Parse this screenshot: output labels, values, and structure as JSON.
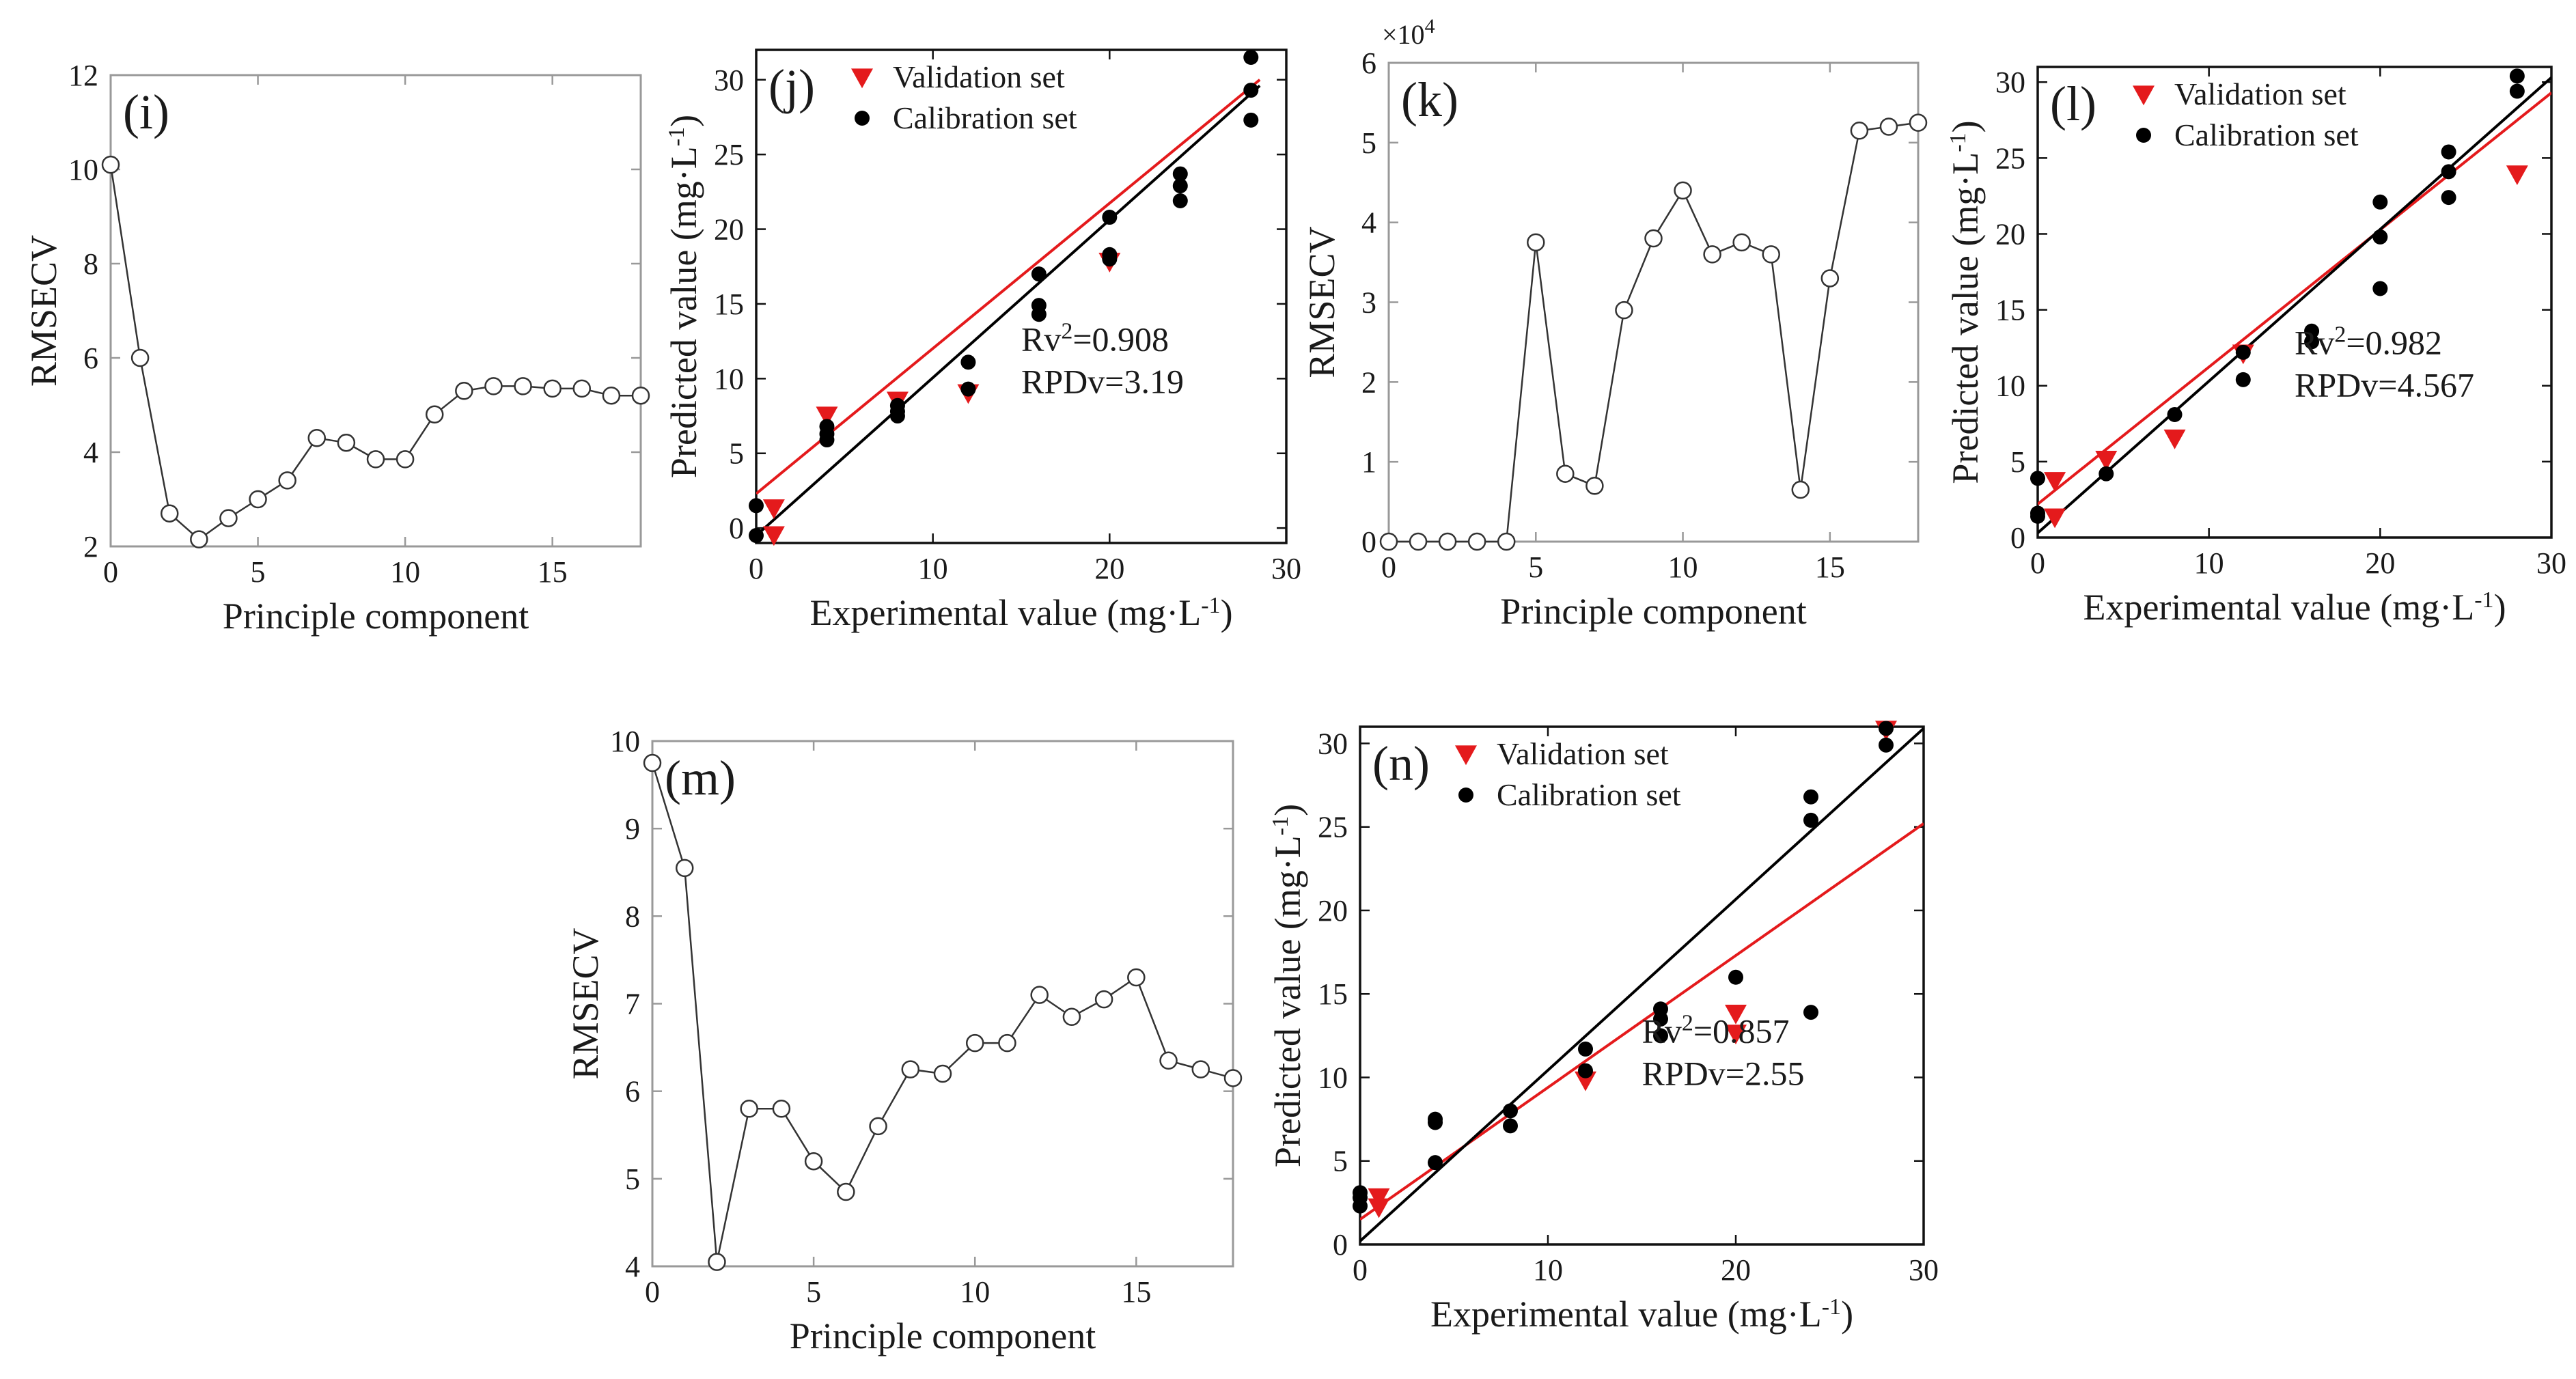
{
  "colors": {
    "validation": "#e41a1c",
    "calibration": "#000000",
    "line_rmsecv": "#333333",
    "frame": "#999999",
    "fit_validation": "#e41a1c",
    "fit_calibration": "#000000"
  },
  "chart_data": [
    {
      "id": "i",
      "type": "line",
      "panel_label": "(i)",
      "xlabel": "Principle component",
      "ylabel": "RMSECV",
      "xlim": [
        0,
        18
      ],
      "ylim": [
        2,
        12
      ],
      "xticks": [
        0,
        5,
        10,
        15
      ],
      "yticks": [
        2,
        4,
        6,
        8,
        10,
        12
      ],
      "xtick_labels": [
        "0",
        "5",
        "10",
        "15"
      ],
      "ytick_labels": [
        "2",
        "4",
        "6",
        "8",
        "10",
        "12"
      ],
      "x": [
        0,
        1,
        2,
        3,
        4,
        5,
        6,
        7,
        8,
        9,
        10,
        11,
        12,
        13,
        14,
        15,
        16,
        17,
        18
      ],
      "y": [
        10.1,
        6.0,
        2.7,
        2.15,
        2.6,
        3.0,
        3.4,
        4.3,
        4.2,
        3.85,
        3.85,
        4.8,
        5.3,
        5.4,
        5.4,
        5.35,
        5.35,
        5.2,
        5.2
      ]
    },
    {
      "id": "j",
      "type": "scatter",
      "panel_label": "(j)",
      "xlabel": "Experimental value (mg·L",
      "xlabel_sup": "-1",
      "xlabel_end": ")",
      "ylabel": "Predicted value (mg·L",
      "ylabel_sup": "-1",
      "ylabel_end": ")",
      "xlim": [
        0,
        30
      ],
      "ylim": [
        -1,
        32
      ],
      "xticks": [
        0,
        10,
        20,
        30
      ],
      "yticks": [
        0,
        5,
        10,
        15,
        20,
        25,
        30
      ],
      "xtick_labels": [
        "0",
        "10",
        "20",
        "30"
      ],
      "ytick_labels": [
        "0",
        "5",
        "10",
        "15",
        "20",
        "25",
        "30"
      ],
      "legend": [
        "Validation set",
        "Calibration set"
      ],
      "annotation": [
        "Rv",
        "2",
        "=0.908",
        "RPDv=3.19"
      ],
      "series": [
        {
          "name": "Validation set",
          "marker": "triangle",
          "x": [
            1,
            1,
            4,
            8,
            12,
            20
          ],
          "y": [
            1.3,
            -0.5,
            7.5,
            8.5,
            9.0,
            17.8
          ]
        },
        {
          "name": "Calibration set",
          "marker": "circle",
          "x": [
            0,
            0,
            4,
            4,
            4,
            8,
            8,
            8,
            12,
            12,
            16,
            16,
            16,
            20,
            20,
            20,
            24,
            24,
            24,
            28,
            28,
            28
          ],
          "y": [
            1.5,
            -0.5,
            6.8,
            6.3,
            5.9,
            8.2,
            7.8,
            7.5,
            11.1,
            9.3,
            17.0,
            14.9,
            14.3,
            20.8,
            18.3,
            18.0,
            23.7,
            22.9,
            21.9,
            31.5,
            29.3,
            27.3
          ]
        }
      ],
      "fit_lines": [
        {
          "name": "validation-fit",
          "x": [
            0,
            28.5
          ],
          "y": [
            2.3,
            30.0
          ]
        },
        {
          "name": "calibration-fit",
          "x": [
            0,
            28.5
          ],
          "y": [
            -0.5,
            29.6
          ]
        }
      ]
    },
    {
      "id": "k",
      "type": "line",
      "panel_label": "(k)",
      "xlabel": "Principle component",
      "ylabel": "RMSECV",
      "exponent_label": "×10",
      "exponent_sup": "4",
      "xlim": [
        0,
        18
      ],
      "ylim": [
        0,
        6
      ],
      "xticks": [
        0,
        5,
        10,
        15
      ],
      "yticks": [
        0,
        1,
        2,
        3,
        4,
        5,
        6
      ],
      "xtick_labels": [
        "0",
        "5",
        "10",
        "15"
      ],
      "ytick_labels": [
        "0",
        "1",
        "2",
        "3",
        "4",
        "5",
        "6"
      ],
      "x": [
        0,
        1,
        2,
        3,
        4,
        5,
        6,
        7,
        8,
        9,
        10,
        11,
        12,
        13,
        14,
        15,
        16,
        17,
        18
      ],
      "y": [
        0.0,
        0.0,
        0.0,
        0.0,
        0.0,
        3.75,
        0.85,
        0.7,
        2.9,
        3.8,
        4.4,
        3.6,
        3.75,
        3.6,
        0.65,
        3.3,
        5.15,
        5.2,
        5.25
      ]
    },
    {
      "id": "l",
      "type": "scatter",
      "panel_label": "(l)",
      "xlabel": "Experimental value (mg·L",
      "xlabel_sup": "-1",
      "xlabel_end": ")",
      "ylabel": "Predicted value (mg·L",
      "ylabel_sup": "-1",
      "ylabel_end": ")",
      "xlim": [
        0,
        30
      ],
      "ylim": [
        0,
        31
      ],
      "xticks": [
        0,
        10,
        20,
        30
      ],
      "yticks": [
        0,
        5,
        10,
        15,
        20,
        25,
        30
      ],
      "xtick_labels": [
        "0",
        "10",
        "20",
        "30"
      ],
      "ytick_labels": [
        "0",
        "5",
        "10",
        "15",
        "20",
        "25",
        "30"
      ],
      "legend": [
        "Validation set",
        "Calibration set"
      ],
      "annotation": [
        "Rv",
        "2",
        "=0.982",
        "RPDv=4.567"
      ],
      "series": [
        {
          "name": "Validation set",
          "marker": "triangle",
          "x": [
            1,
            1,
            4,
            8,
            12,
            28
          ],
          "y": [
            3.7,
            1.3,
            5.1,
            6.5,
            12.1,
            23.9
          ]
        },
        {
          "name": "Calibration set",
          "marker": "circle",
          "x": [
            0,
            0,
            0,
            4,
            8,
            12,
            12,
            16,
            16,
            20,
            20,
            20,
            24,
            24,
            24,
            28,
            28
          ],
          "y": [
            3.9,
            1.6,
            1.4,
            4.2,
            8.1,
            12.2,
            10.4,
            13.6,
            12.9,
            22.1,
            19.8,
            16.4,
            25.4,
            24.1,
            22.4,
            30.4,
            29.4
          ]
        }
      ],
      "fit_lines": [
        {
          "name": "validation-fit",
          "x": [
            0,
            30
          ],
          "y": [
            2.2,
            29.3
          ]
        },
        {
          "name": "calibration-fit",
          "x": [
            0,
            30
          ],
          "y": [
            0.3,
            30.3
          ]
        }
      ]
    },
    {
      "id": "m",
      "type": "line",
      "panel_label": "(m)",
      "xlabel": "Principle component",
      "ylabel": "RMSECV",
      "xlim": [
        0,
        18
      ],
      "ylim": [
        4,
        10
      ],
      "xticks": [
        0,
        5,
        10,
        15
      ],
      "yticks": [
        4,
        5,
        6,
        7,
        8,
        9,
        10
      ],
      "xtick_labels": [
        "0",
        "5",
        "10",
        "15"
      ],
      "ytick_labels": [
        "4",
        "5",
        "6",
        "7",
        "8",
        "9",
        "10"
      ],
      "x": [
        0,
        1,
        2,
        3,
        4,
        5,
        6,
        7,
        8,
        9,
        10,
        11,
        12,
        13,
        14,
        15,
        16,
        17,
        18
      ],
      "y": [
        9.75,
        8.55,
        4.05,
        5.8,
        5.8,
        5.2,
        4.85,
        5.6,
        6.25,
        6.2,
        6.55,
        6.55,
        7.1,
        6.85,
        7.05,
        7.3,
        6.35,
        6.25,
        6.15
      ]
    },
    {
      "id": "n",
      "type": "scatter",
      "panel_label": "(n)",
      "xlabel": "Experimental value (mg·L",
      "xlabel_sup": "-1",
      "xlabel_end": ")",
      "ylabel": "Predicted value (mg·L",
      "ylabel_sup": "-1",
      "ylabel_end": ")",
      "xlim": [
        0,
        30
      ],
      "ylim": [
        0,
        31
      ],
      "xticks": [
        0,
        10,
        20,
        30
      ],
      "yticks": [
        0,
        5,
        10,
        15,
        20,
        25,
        30
      ],
      "xtick_labels": [
        "0",
        "10",
        "20",
        "30"
      ],
      "ytick_labels": [
        "0",
        "5",
        "10",
        "15",
        "20",
        "25",
        "30"
      ],
      "legend": [
        "Validation set",
        "Calibration set"
      ],
      "annotation": [
        "Rv",
        "2",
        "=0.857",
        "RPDv=2.55"
      ],
      "series": [
        {
          "name": "Validation set",
          "marker": "triangle",
          "x": [
            1,
            1,
            12,
            20,
            20,
            28
          ],
          "y": [
            2.8,
            2.2,
            9.8,
            13.8,
            12.6,
            30.8
          ]
        },
        {
          "name": "Calibration set",
          "marker": "circle",
          "x": [
            0,
            0,
            0,
            4,
            4,
            4,
            8,
            8,
            12,
            12,
            16,
            16,
            16,
            20,
            24,
            24,
            24,
            28,
            28
          ],
          "y": [
            3.1,
            2.8,
            2.3,
            7.5,
            7.3,
            4.9,
            8.0,
            7.1,
            11.7,
            10.4,
            14.1,
            13.5,
            12.5,
            16.0,
            26.8,
            25.4,
            13.9,
            30.9,
            29.9
          ]
        }
      ],
      "fit_lines": [
        {
          "name": "validation-fit",
          "x": [
            0,
            30
          ],
          "y": [
            1.5,
            25.2
          ]
        },
        {
          "name": "calibration-fit",
          "x": [
            0,
            30
          ],
          "y": [
            0.2,
            30.9
          ]
        }
      ]
    }
  ]
}
